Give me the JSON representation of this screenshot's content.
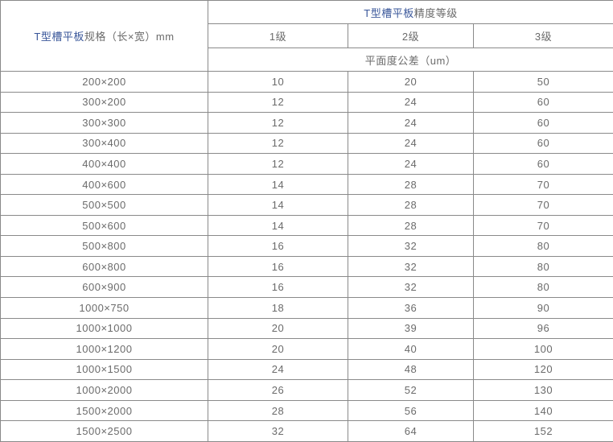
{
  "table": {
    "spec_header": {
      "keyword": "T型槽平板",
      "rest": "规格（长×宽）mm"
    },
    "grade_header": {
      "keyword": "T型槽平板",
      "rest": "精度等级"
    },
    "grades": [
      "1级",
      "2级",
      "3级"
    ],
    "tolerance_label": "平面度公差（um）",
    "rows": [
      {
        "spec": "200×200",
        "values": [
          "10",
          "20",
          "50"
        ]
      },
      {
        "spec": "300×200",
        "values": [
          "12",
          "24",
          "60"
        ]
      },
      {
        "spec": "300×300",
        "values": [
          "12",
          "24",
          "60"
        ]
      },
      {
        "spec": "300×400",
        "values": [
          "12",
          "24",
          "60"
        ]
      },
      {
        "spec": "400×400",
        "values": [
          "12",
          "24",
          "60"
        ]
      },
      {
        "spec": "400×600",
        "values": [
          "14",
          "28",
          "70"
        ]
      },
      {
        "spec": "500×500",
        "values": [
          "14",
          "28",
          "70"
        ]
      },
      {
        "spec": "500×600",
        "values": [
          "14",
          "28",
          "70"
        ]
      },
      {
        "spec": "500×800",
        "values": [
          "16",
          "32",
          "80"
        ]
      },
      {
        "spec": "600×800",
        "values": [
          "16",
          "32",
          "80"
        ]
      },
      {
        "spec": "600×900",
        "values": [
          "16",
          "32",
          "80"
        ]
      },
      {
        "spec": "1000×750",
        "values": [
          "18",
          "36",
          "90"
        ]
      },
      {
        "spec": "1000×1000",
        "values": [
          "20",
          "39",
          "96"
        ]
      },
      {
        "spec": "1000×1200",
        "values": [
          "20",
          "40",
          "100"
        ]
      },
      {
        "spec": "1000×1500",
        "values": [
          "24",
          "48",
          "120"
        ]
      },
      {
        "spec": "1000×2000",
        "values": [
          "26",
          "52",
          "130"
        ]
      },
      {
        "spec": "1500×2000",
        "values": [
          "28",
          "56",
          "140"
        ]
      },
      {
        "spec": "1500×2500",
        "values": [
          "32",
          "64",
          "152"
        ]
      }
    ]
  },
  "colors": {
    "keyword_blue": "#3a579a",
    "text_gray": "#6b6b6b",
    "border_gray": "#8a8a8a",
    "background": "#ffffff"
  }
}
